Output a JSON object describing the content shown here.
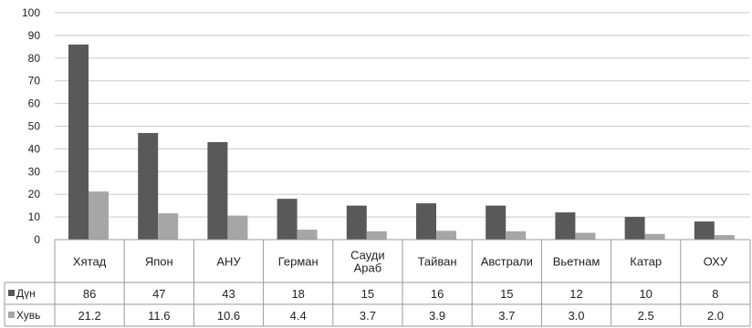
{
  "chart_data": {
    "type": "bar",
    "categories": [
      [
        "Хятад"
      ],
      [
        "Япон"
      ],
      [
        "АНУ"
      ],
      [
        "Герман"
      ],
      [
        "Сауди",
        "Араб"
      ],
      [
        "Тайван"
      ],
      [
        "Австрали"
      ],
      [
        "Вьетнам"
      ],
      [
        "Катар"
      ],
      [
        "ОХУ"
      ]
    ],
    "series": [
      {
        "name": "Дүн",
        "color": "#595959",
        "values": [
          86,
          47,
          43,
          18,
          15,
          16,
          15,
          12,
          10,
          8
        ],
        "labels": [
          "86",
          "47",
          "43",
          "18",
          "15",
          "16",
          "15",
          "12",
          "10",
          "8"
        ]
      },
      {
        "name": "Хувь",
        "color": "#a6a6a6",
        "values": [
          21.2,
          11.6,
          10.6,
          4.4,
          3.7,
          3.9,
          3.7,
          3.0,
          2.5,
          2.0
        ],
        "labels": [
          "21.2",
          "11.6",
          "10.6",
          "4.4",
          "3.7",
          "3.9",
          "3.7",
          "3.0",
          "2.5",
          "2.0"
        ]
      }
    ],
    "ylim": [
      0,
      100
    ],
    "yticks": [
      0,
      10,
      20,
      30,
      40,
      50,
      60,
      70,
      80,
      90,
      100
    ],
    "grid": true,
    "legend": "data-table"
  }
}
